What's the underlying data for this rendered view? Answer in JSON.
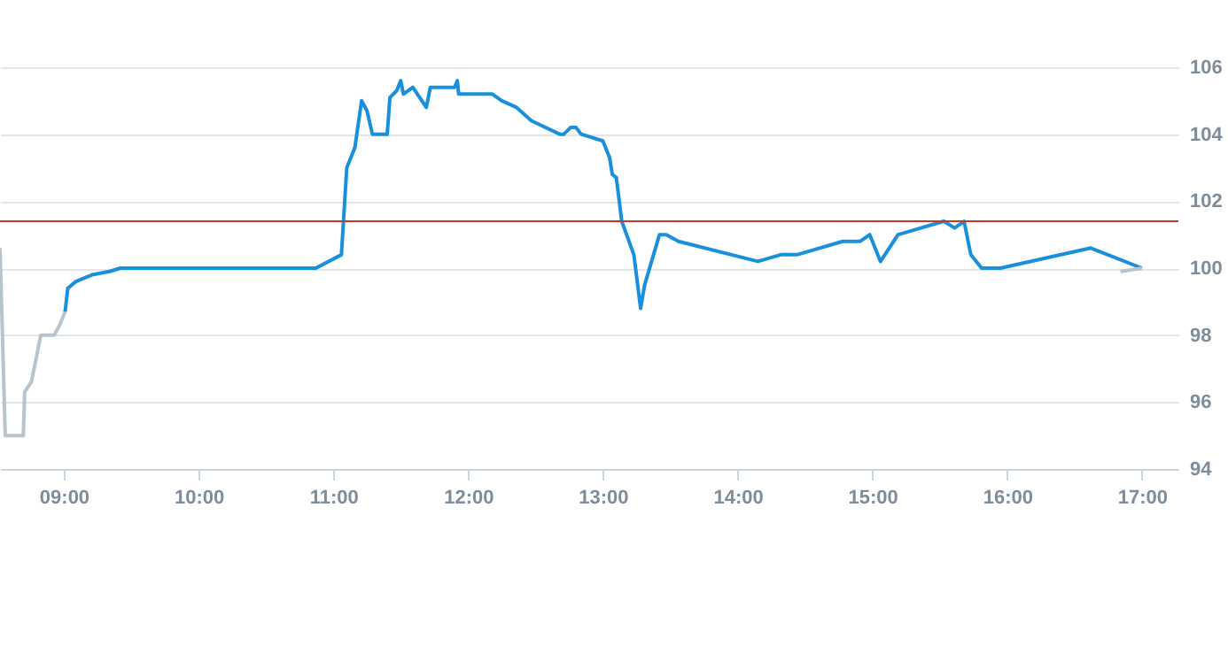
{
  "chart_data": {
    "type": "line",
    "xlim": [
      8.527,
      17.27
    ],
    "xticks": [
      {
        "value": 9,
        "label": "09:00"
      },
      {
        "value": 10,
        "label": "10:00"
      },
      {
        "value": 11,
        "label": "11:00"
      },
      {
        "value": 12,
        "label": "12:00"
      },
      {
        "value": 13,
        "label": "13:00"
      },
      {
        "value": 14,
        "label": "14:00"
      },
      {
        "value": 15,
        "label": "15:00"
      },
      {
        "value": 16,
        "label": "16:00"
      },
      {
        "value": 17,
        "label": "17:00"
      }
    ],
    "ylim": [
      94,
      106
    ],
    "yticks": [
      94,
      96,
      98,
      100,
      102,
      104,
      106
    ],
    "grid": "y",
    "marker": "none",
    "line_style": "solid",
    "series": [
      {
        "color": "#b8c4cc",
        "x": [
          8.527,
          8.566,
          8.7,
          8.71,
          8.76,
          8.83,
          8.93,
          8.97,
          9.01
        ],
        "values": [
          100.6,
          95.0,
          95.0,
          96.3,
          96.6,
          98.0,
          98.0,
          98.3,
          98.7
        ]
      },
      {
        "color": "#1a8fdc",
        "x": [
          9.01,
          9.03,
          9.09,
          9.21,
          9.34,
          9.42,
          10.87,
          11.06,
          11.1,
          11.16,
          11.21,
          11.25,
          11.29,
          11.4,
          11.42,
          11.47,
          11.5,
          11.52,
          11.59,
          11.69,
          11.72,
          11.9,
          11.92,
          11.93,
          12.18,
          12.25,
          12.36,
          12.47,
          12.68,
          12.71,
          12.76,
          12.8,
          12.84,
          13.0,
          13.05,
          13.07,
          13.1,
          13.14,
          13.23,
          13.28,
          13.31,
          13.42,
          13.47,
          13.56,
          14.15,
          14.32,
          14.44,
          14.78,
          14.91,
          14.98,
          15.06,
          15.19,
          15.53,
          15.61,
          15.68,
          15.73,
          15.81,
          15.95,
          16.62,
          17.0
        ],
        "values": [
          98.7,
          99.4,
          99.6,
          99.8,
          99.9,
          100.0,
          100.0,
          100.4,
          103.0,
          103.6,
          105.0,
          104.7,
          104.0,
          104.0,
          105.1,
          105.3,
          105.6,
          105.2,
          105.4,
          104.8,
          105.4,
          105.4,
          105.6,
          105.2,
          105.2,
          105.0,
          104.8,
          104.4,
          104.0,
          104.0,
          104.2,
          104.2,
          104.0,
          103.8,
          103.3,
          102.8,
          102.7,
          101.4,
          100.4,
          98.8,
          99.5,
          101.0,
          101.0,
          100.8,
          100.2,
          100.4,
          100.4,
          100.8,
          100.8,
          101.0,
          100.2,
          101.0,
          101.4,
          101.2,
          101.4,
          100.4,
          100.0,
          100.0,
          100.6,
          100.0
        ]
      },
      {
        "color": "#b8c4cc",
        "x": [
          16.84,
          17.0
        ],
        "values": [
          99.9,
          100.0
        ]
      }
    ],
    "ref_lines": [
      {
        "axis": "y",
        "value": 101.4,
        "color": "#c0392b"
      }
    ]
  }
}
